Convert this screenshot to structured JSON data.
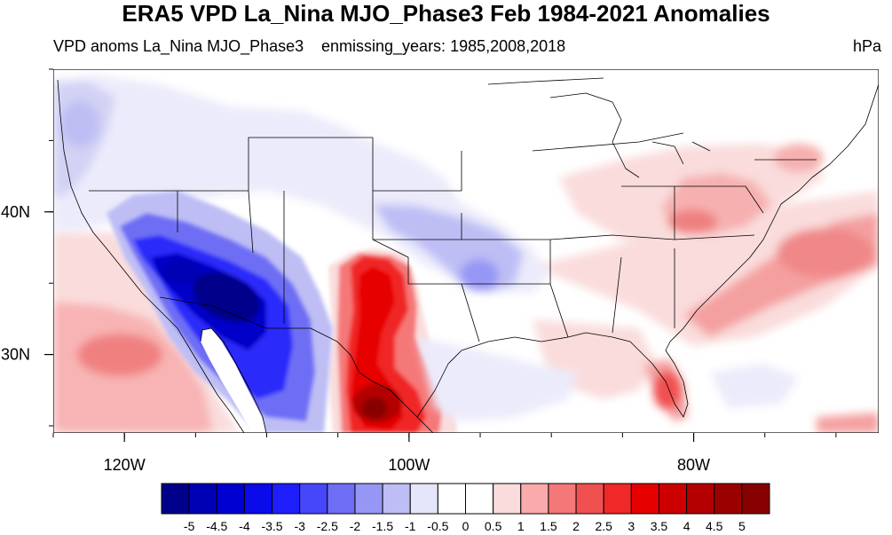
{
  "title": "ERA5 VPD La_Nina MJO_Phase3 Feb 1984-2021 Anomalies",
  "subtitle_left": "VPD anoms La_Nina MJO_Phase3",
  "subtitle_center": "enmissing_years: 1985,2008,2018",
  "units": "hPa",
  "axis": {
    "lon_ticks": [
      {
        "lon": -120,
        "label": "120W"
      },
      {
        "lon": -100,
        "label": "100W"
      },
      {
        "lon": -80,
        "label": "80W"
      }
    ],
    "lat_ticks": [
      {
        "lat": 40,
        "label": "40N"
      },
      {
        "lat": 30,
        "label": "30N"
      }
    ],
    "lon_range": [
      -125,
      -67
    ],
    "lat_range": [
      24.5,
      50
    ]
  },
  "colorbar": {
    "labels": [
      "-5",
      "-4.5",
      "-4",
      "-3.5",
      "-3",
      "-2.5",
      "-2",
      "-1.5",
      "-1",
      "-0.5",
      "0",
      "0.5",
      "1",
      "1.5",
      "2",
      "2.5",
      "3",
      "3.5",
      "4",
      "4.5",
      "5"
    ],
    "colors": [
      "#00008b",
      "#0000b4",
      "#0000d2",
      "#0a0aeb",
      "#1e1efa",
      "#4646fa",
      "#6e6ef5",
      "#9696f5",
      "#bebef5",
      "#e6e6fa",
      "#ffffff",
      "#ffffff",
      "#fadcdc",
      "#faaaaa",
      "#f57878",
      "#f05050",
      "#f02828",
      "#e60000",
      "#cd0000",
      "#b40000",
      "#9b0000",
      "#870000"
    ]
  },
  "map": {
    "land_color": "#ffffff",
    "border_color": "#000000",
    "anomaly_features": [
      {
        "name": "strong negative anomaly over Sonora and Arizona",
        "value": -4.5
      },
      {
        "name": "moderate negative anomaly over the southern Rockies",
        "value": -1.5
      },
      {
        "name": "weak negative anomaly over Kansas and Missouri",
        "value": -1.5
      },
      {
        "name": "weak negative anomaly over the Pacific Northwest",
        "value": -0.5
      },
      {
        "name": "strong positive anomaly over northeast Mexico and west Texas",
        "value": 4.5
      },
      {
        "name": "positive anomaly over the eastern Pacific",
        "value": 2
      },
      {
        "name": "positive anomaly over the Atlantic coast and Northeast",
        "value": 1.5
      },
      {
        "name": "positive anomaly over south Florida",
        "value": 3
      }
    ]
  }
}
